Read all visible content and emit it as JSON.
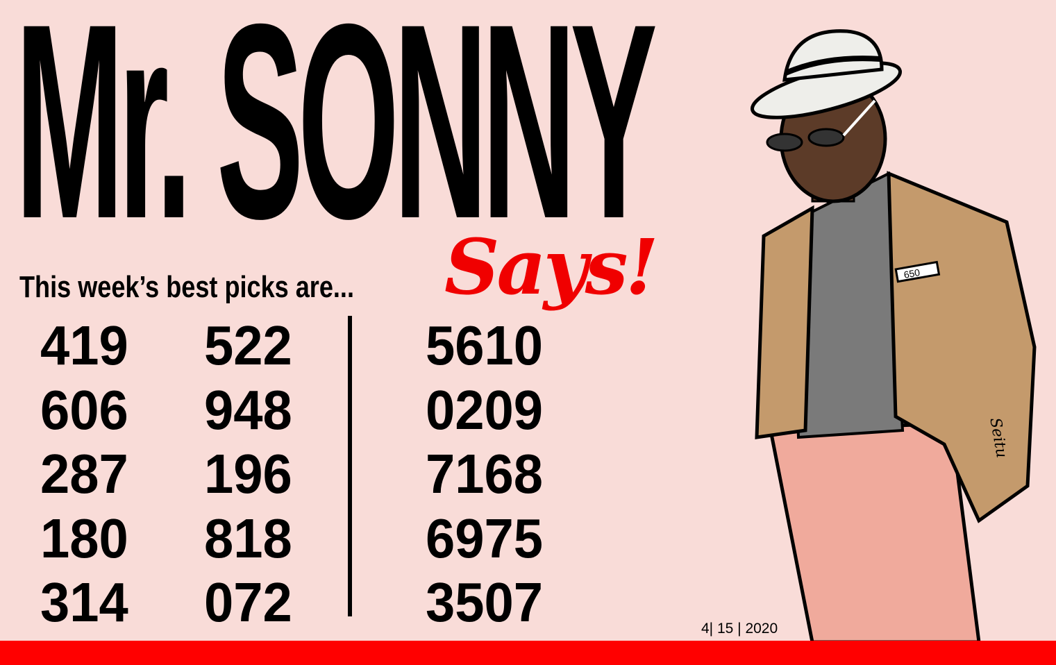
{
  "title": "Mr. SONNY",
  "title_script": "Says!",
  "subtitle": "This week’s best picks are...",
  "picks": {
    "three_digit_col1": [
      "419",
      "606",
      "287",
      "180",
      "314"
    ],
    "three_digit_col2": [
      "522",
      "948",
      "196",
      "818",
      "072"
    ],
    "four_digit": [
      "5610",
      "0209",
      "7168",
      "6975",
      "3507"
    ]
  },
  "date": "4| 15 | 2020",
  "pocket_card": "650",
  "signature": "Seitu",
  "colors": {
    "background": "#f9dcd8",
    "accent": "#ff0000",
    "text": "#000000",
    "jacket": "#c49a6c",
    "pants": "#f0aa9c"
  }
}
